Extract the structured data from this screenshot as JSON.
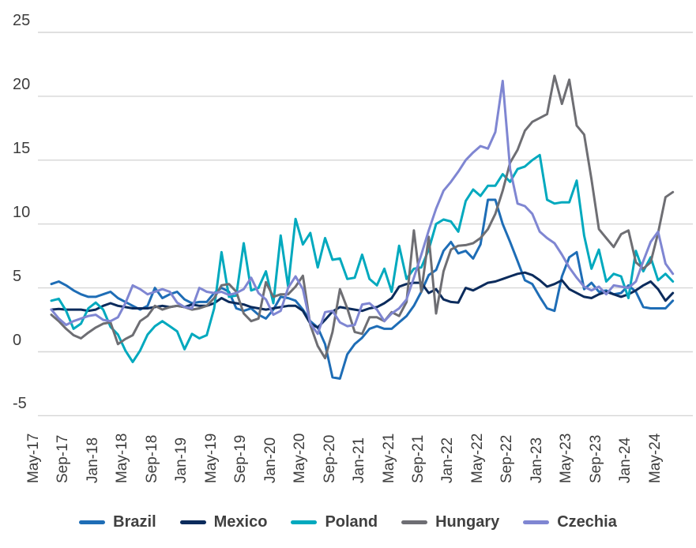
{
  "chart_data": {
    "type": "line",
    "title": "",
    "xlabel": "",
    "ylabel": "",
    "y_ticks": [
      25,
      20,
      15,
      10,
      5,
      0,
      -5
    ],
    "ylim": [
      -5,
      25
    ],
    "grid": true,
    "legend_position": "bottom",
    "x": [
      "May-17",
      "Jun-17",
      "Jul-17",
      "Aug-17",
      "Sep-17",
      "Oct-17",
      "Nov-17",
      "Dec-17",
      "Jan-18",
      "Feb-18",
      "Mar-18",
      "Apr-18",
      "May-18",
      "Jun-18",
      "Jul-18",
      "Aug-18",
      "Sep-18",
      "Oct-18",
      "Nov-18",
      "Dec-18",
      "Jan-19",
      "Feb-19",
      "Mar-19",
      "Apr-19",
      "May-19",
      "Jun-19",
      "Jul-19",
      "Aug-19",
      "Sep-19",
      "Oct-19",
      "Nov-19",
      "Dec-19",
      "Jan-20",
      "Feb-20",
      "Mar-20",
      "Apr-20",
      "May-20",
      "Jun-20",
      "Jul-20",
      "Aug-20",
      "Sep-20",
      "Oct-20",
      "Nov-20",
      "Dec-20",
      "Jan-21",
      "Feb-21",
      "Mar-21",
      "Apr-21",
      "May-21",
      "Jun-21",
      "Jul-21",
      "Aug-21",
      "Sep-21",
      "Oct-21",
      "Nov-21",
      "Dec-21",
      "Jan-22",
      "Feb-22",
      "Mar-22",
      "Apr-22",
      "May-22",
      "Jun-22",
      "Jul-22",
      "Aug-22",
      "Sep-22",
      "Oct-22",
      "Nov-22",
      "Dec-22",
      "Jan-23",
      "Feb-23",
      "Mar-23",
      "Apr-23",
      "May-23",
      "Jun-23",
      "Jul-23",
      "Aug-23",
      "Sep-23",
      "Oct-23",
      "Nov-23",
      "Dec-23",
      "Jan-24",
      "Feb-24",
      "Mar-24",
      "Apr-24",
      "May-24"
    ],
    "x_tick_labels": [
      "May-17",
      "Sep-17",
      "Jan-18",
      "May-18",
      "Sep-18",
      "Jan-19",
      "May-19",
      "Sep-19",
      "Jan-20",
      "May-20",
      "Sep-20",
      "Jan-21",
      "May-21",
      "Sep-21",
      "Jan-22",
      "May-22",
      "Sep-22",
      "Jan-23",
      "May-23",
      "Sep-23",
      "Jan-24",
      "May-24"
    ],
    "x_tick_every": 4,
    "series": [
      {
        "name": "Brazil",
        "color": "#1E6DB6",
        "values": [
          5.3,
          5.5,
          5.2,
          4.8,
          4.5,
          4.3,
          4.3,
          4.5,
          4.7,
          4.2,
          3.9,
          3.6,
          3.3,
          3.6,
          5.0,
          4.2,
          4.5,
          4.7,
          4.1,
          3.8,
          3.9,
          3.9,
          4.6,
          5.0,
          4.7,
          3.4,
          3.2,
          3.4,
          2.9,
          2.6,
          3.3,
          4.3,
          4.2,
          4.0,
          3.3,
          2.4,
          1.9,
          0.6,
          -2.0,
          -2.1,
          -0.2,
          0.6,
          1.1,
          1.8,
          2.0,
          1.8,
          1.8,
          2.3,
          2.8,
          3.6,
          4.7,
          6.0,
          6.4,
          7.9,
          8.6,
          7.7,
          7.9,
          7.3,
          8.4,
          11.9,
          11.9,
          10.0,
          8.6,
          7.1,
          5.6,
          5.3,
          4.3,
          3.4,
          3.2,
          5.9,
          7.4,
          7.8,
          4.9,
          5.4,
          4.7,
          4.8,
          4.5,
          4.6,
          5.2,
          4.7,
          3.5,
          3.4,
          3.4,
          3.4,
          4.0
        ]
      },
      {
        "name": "Mexico",
        "color": "#0B2B5C",
        "values": [
          3.3,
          3.35,
          3.3,
          3.3,
          3.3,
          3.2,
          3.3,
          3.6,
          3.8,
          3.6,
          3.5,
          3.4,
          3.4,
          3.4,
          3.5,
          3.6,
          3.5,
          3.6,
          3.5,
          3.7,
          3.6,
          3.6,
          3.8,
          4.2,
          3.9,
          3.8,
          3.7,
          3.5,
          3.4,
          3.3,
          3.4,
          3.5,
          3.6,
          3.6,
          3.2,
          2.2,
          1.9,
          2.5,
          3.15,
          3.5,
          3.4,
          3.3,
          3.2,
          3.4,
          3.5,
          3.8,
          4.2,
          5.1,
          5.3,
          5.4,
          5.4,
          4.6,
          4.9,
          4.1,
          3.9,
          3.85,
          5.0,
          4.8,
          5.1,
          5.4,
          5.5,
          5.7,
          5.9,
          6.1,
          6.2,
          6.0,
          5.6,
          5.1,
          5.3,
          5.6,
          4.9,
          4.6,
          4.3,
          4.2,
          4.5,
          4.7,
          4.5,
          4.3,
          4.5,
          4.8,
          5.2,
          5.5,
          4.9,
          4.0,
          4.6
        ]
      },
      {
        "name": "Poland",
        "color": "#00A9BE",
        "values": [
          4.0,
          4.15,
          3.2,
          1.8,
          2.2,
          3.4,
          3.85,
          3.3,
          1.95,
          1.35,
          0.1,
          -0.8,
          0.1,
          1.35,
          2.0,
          2.4,
          2.0,
          1.6,
          0.2,
          1.4,
          1.05,
          1.3,
          3.4,
          7.8,
          4.3,
          4.4,
          8.5,
          4.8,
          5.0,
          6.3,
          3.8,
          9.1,
          5.1,
          10.4,
          8.4,
          9.3,
          6.6,
          8.9,
          7.2,
          7.3,
          5.7,
          5.8,
          7.6,
          5.7,
          5.2,
          6.5,
          4.7,
          8.3,
          5.7,
          6.5,
          6.6,
          8.0,
          10.0,
          10.35,
          10.2,
          9.4,
          11.8,
          12.7,
          12.2,
          13.0,
          13.0,
          13.9,
          13.3,
          14.3,
          14.5,
          15.0,
          15.4,
          11.9,
          11.6,
          11.7,
          11.7,
          13.4,
          9.1,
          6.5,
          8.0,
          5.5,
          6.1,
          5.9,
          4.2,
          7.9,
          6.3,
          7.4,
          5.6,
          6.1,
          5.5
        ]
      },
      {
        "name": "Hungary",
        "color": "#6E6E73",
        "values": [
          2.9,
          2.4,
          1.8,
          1.3,
          1.05,
          1.5,
          1.9,
          2.2,
          2.3,
          0.6,
          1.0,
          1.3,
          2.4,
          2.8,
          3.6,
          3.3,
          3.5,
          3.6,
          3.5,
          3.3,
          3.4,
          3.6,
          4.2,
          5.2,
          5.3,
          4.7,
          3.0,
          2.4,
          2.6,
          5.45,
          4.3,
          4.5,
          4.5,
          5.1,
          5.95,
          2.1,
          0.45,
          -0.5,
          1.55,
          4.9,
          3.4,
          1.55,
          1.4,
          2.7,
          2.7,
          2.4,
          3.1,
          2.8,
          3.9,
          9.5,
          4.7,
          9.0,
          3.0,
          6.3,
          8.0,
          8.3,
          8.35,
          8.5,
          8.9,
          9.6,
          10.8,
          12.6,
          14.8,
          15.8,
          17.3,
          18.0,
          18.3,
          18.6,
          21.6,
          19.4,
          21.3,
          17.7,
          17.0,
          13.5,
          9.6,
          8.9,
          8.2,
          9.2,
          9.5,
          7.0,
          6.5,
          7.0,
          9.3,
          12.1,
          12.5
        ]
      },
      {
        "name": "Czechia",
        "color": "#7F86D2",
        "values": [
          3.3,
          2.6,
          2.1,
          2.4,
          2.6,
          2.8,
          2.9,
          2.5,
          2.4,
          2.7,
          3.8,
          5.2,
          4.9,
          4.5,
          4.7,
          4.9,
          4.7,
          3.85,
          3.5,
          3.4,
          5.0,
          4.7,
          4.6,
          4.7,
          4.45,
          4.6,
          4.9,
          5.8,
          4.6,
          4.1,
          2.9,
          3.2,
          5.0,
          5.9,
          4.9,
          2.2,
          1.4,
          3.1,
          3.2,
          2.3,
          2.0,
          2.1,
          3.7,
          3.8,
          3.3,
          2.4,
          3.0,
          3.4,
          4.1,
          5.8,
          7.6,
          9.5,
          11.2,
          12.6,
          13.3,
          14.1,
          15.0,
          15.6,
          16.1,
          15.9,
          17.2,
          21.2,
          14.3,
          11.6,
          11.4,
          10.8,
          9.4,
          8.9,
          8.5,
          7.6,
          6.6,
          5.8,
          5.1,
          4.8,
          5.1,
          4.5,
          5.2,
          5.1,
          5.0,
          5.5,
          7.1,
          8.6,
          9.4,
          6.9,
          6.1
        ]
      }
    ],
    "colors": {
      "gridline": "#d6d6d6",
      "tick_text": "#3d3d3d",
      "legend_text": "#404040",
      "background": "#ffffff"
    }
  }
}
